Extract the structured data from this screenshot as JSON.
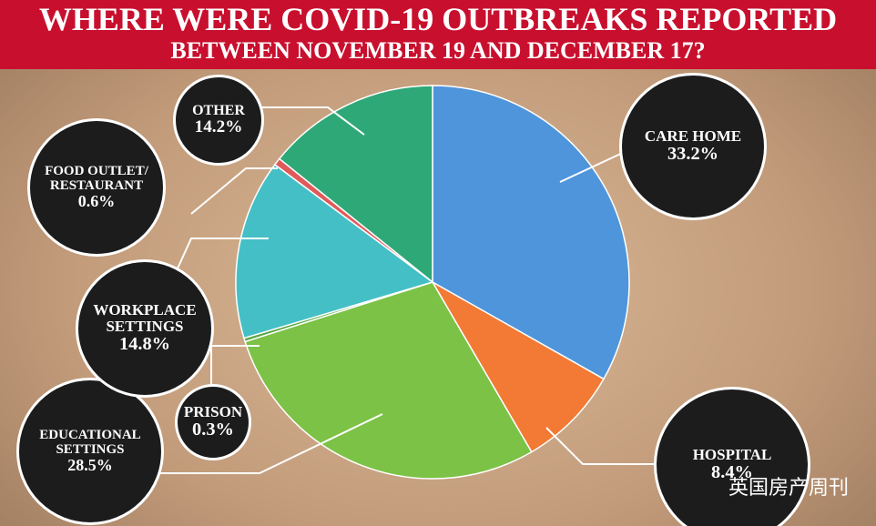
{
  "chart_data": {
    "type": "pie",
    "title": "WHERE WERE COVID-19 OUTBREAKS REPORTED",
    "subtitle": "BETWEEN NOVEMBER 19 AND DECEMBER 17?",
    "categories": [
      "CARE HOME",
      "HOSPITAL",
      "EDUCATIONAL SETTINGS",
      "PRISON",
      "WORKPLACE SETTINGS",
      "FOOD OUTLET/ RESTAURANT",
      "OTHER"
    ],
    "values": [
      33.2,
      8.4,
      28.5,
      0.3,
      14.8,
      0.6,
      14.2
    ],
    "value_labels": [
      "33.2%",
      "8.4%",
      "28.5%",
      "0.3%",
      "14.8%",
      "0.6%",
      "14.2%"
    ],
    "colors": [
      "#4f95db",
      "#f27a35",
      "#7cc246",
      "#5aa845",
      "#45bfc6",
      "#e05a5a",
      "#2fa878"
    ],
    "watermark": "英国房产周刊"
  }
}
